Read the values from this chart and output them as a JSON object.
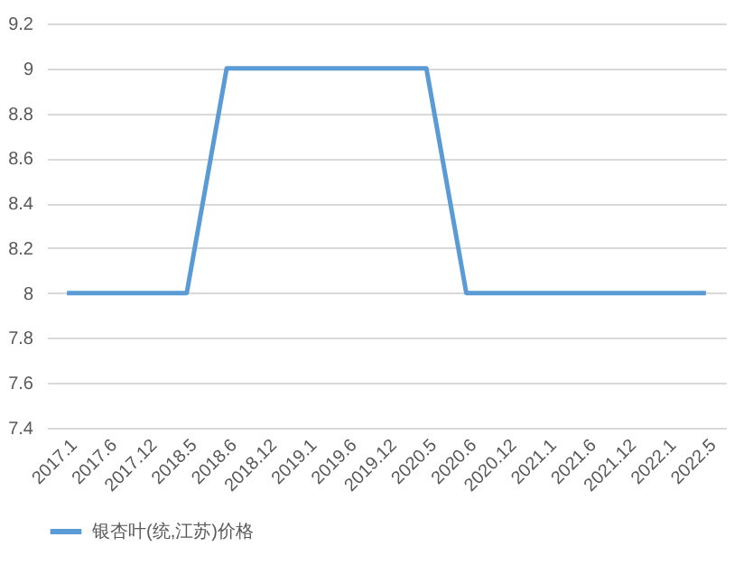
{
  "chart_data": {
    "type": "line",
    "categories": [
      "2017.1",
      "2017.6",
      "2017.12",
      "2018.5",
      "2018.6",
      "2018.12",
      "2019.1",
      "2019.6",
      "2019.12",
      "2020.5",
      "2020.6",
      "2020.12",
      "2021.1",
      "2021.6",
      "2021.12",
      "2022.1",
      "2022.5"
    ],
    "series": [
      {
        "name": "银杏叶(统,江苏)价格",
        "color": "#5b9bd5",
        "values": [
          8,
          8,
          8,
          8,
          9,
          9,
          9,
          9,
          9,
          9,
          8,
          8,
          8,
          8,
          8,
          8,
          8
        ]
      }
    ],
    "ylim": [
      7.4,
      9.2
    ],
    "yticks": [
      7.4,
      7.6,
      7.8,
      8,
      8.2,
      8.4,
      8.6,
      8.8,
      9,
      9.2
    ],
    "grid": "y",
    "legend": "bottom",
    "marker": "none",
    "line_style": "solid"
  }
}
